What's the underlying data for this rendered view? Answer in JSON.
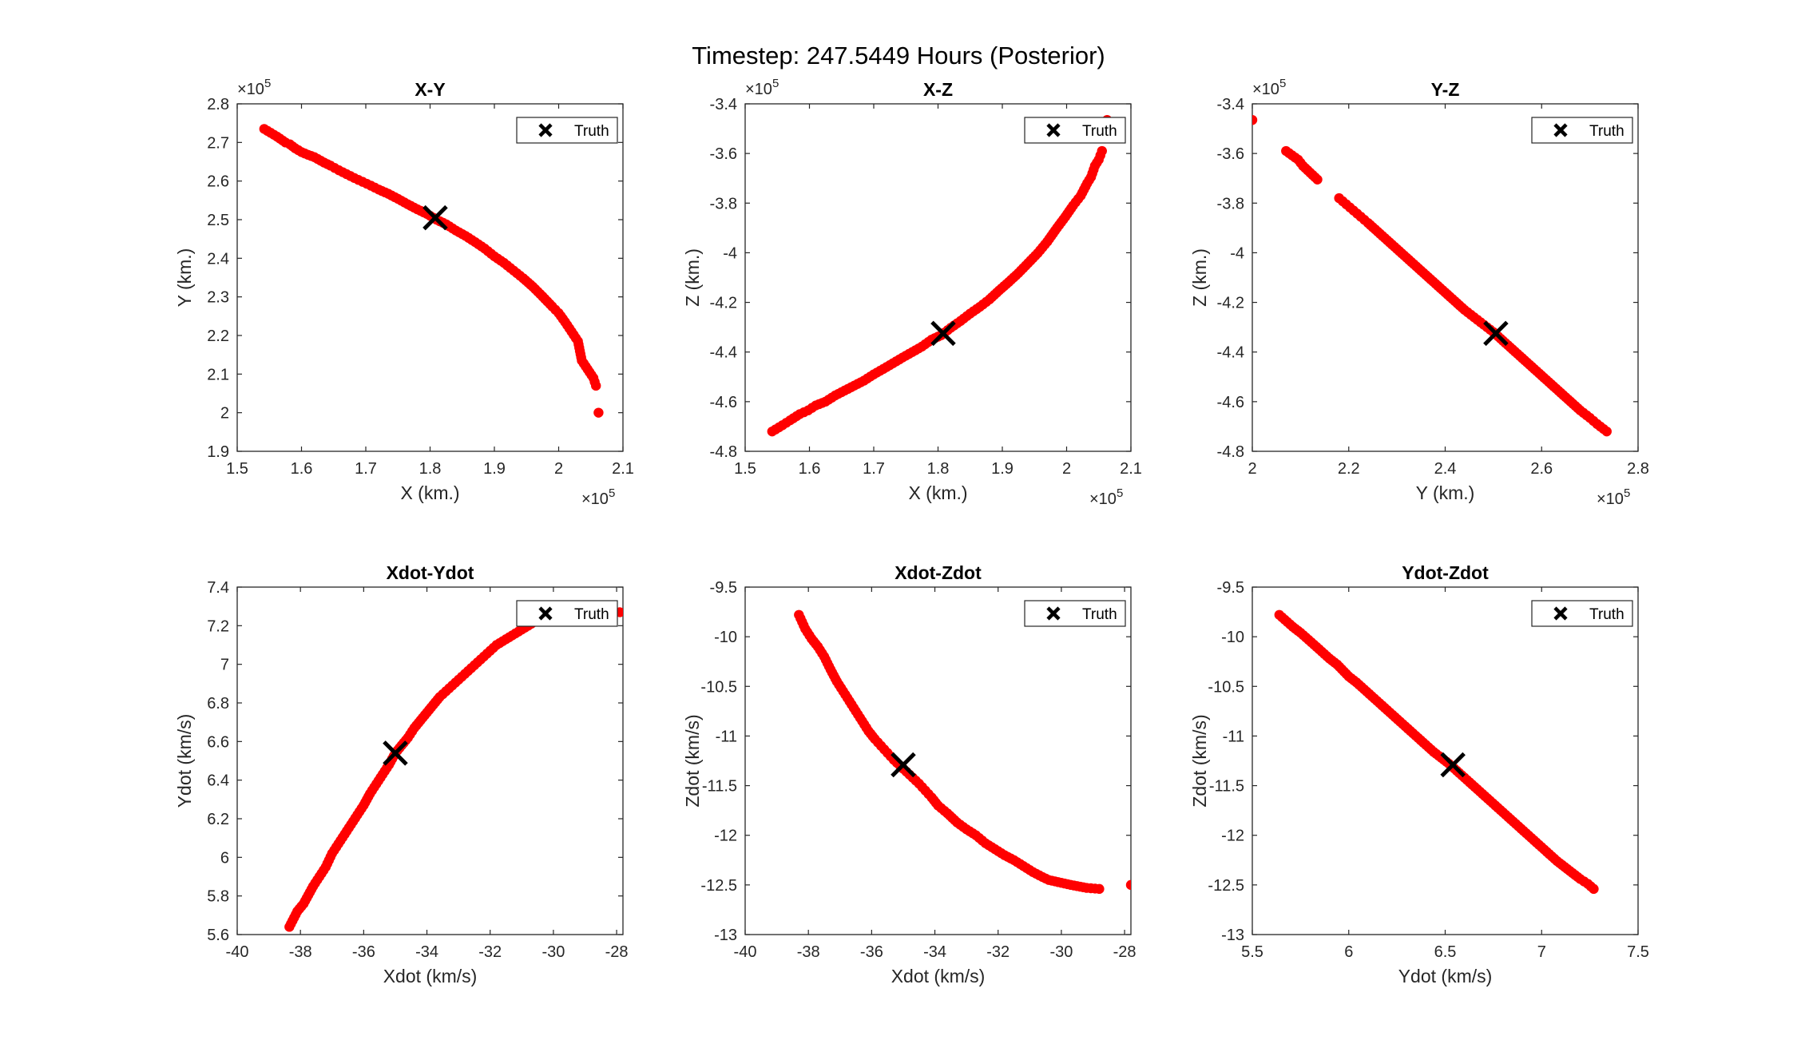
{
  "figure": {
    "title": "Timestep: 247.5449 Hours (Posterior)"
  },
  "colors": {
    "points": "#ff0000",
    "truth": "#000000",
    "axes": "#262626"
  },
  "chart_data": [
    {
      "type": "scatter",
      "title": "X-Y",
      "xlabel": "X (km.)",
      "ylabel": "Y (km.)",
      "xlim": [
        150000,
        210000
      ],
      "ylim": [
        190000,
        280000
      ],
      "xticks": [
        "1.5",
        "1.6",
        "1.7",
        "1.8",
        "1.9",
        "2",
        "2.1"
      ],
      "yticks": [
        "1.9",
        "2",
        "2.1",
        "2.2",
        "2.3",
        "2.4",
        "2.5",
        "2.6",
        "2.7",
        "2.8"
      ],
      "x_exponent": "5",
      "y_exponent": "5",
      "legend": {
        "label": "Truth",
        "position": "top-right"
      },
      "truth": [
        180800,
        250500
      ],
      "samples": [
        [
          154200,
          273500
        ],
        [
          156200,
          271500
        ],
        [
          157500,
          270000
        ],
        [
          158200,
          269500
        ],
        [
          159000,
          268500
        ],
        [
          160000,
          267500
        ],
        [
          161000,
          266800
        ],
        [
          162000,
          266200
        ],
        [
          163500,
          264800
        ],
        [
          164500,
          264000
        ],
        [
          165800,
          262800
        ],
        [
          167000,
          261800
        ],
        [
          168200,
          260800
        ],
        [
          169500,
          259800
        ],
        [
          170800,
          258800
        ],
        [
          172000,
          257800
        ],
        [
          173500,
          256700
        ],
        [
          175000,
          255400
        ],
        [
          176500,
          254000
        ],
        [
          178000,
          252700
        ],
        [
          179500,
          251500
        ],
        [
          181000,
          250000
        ],
        [
          182500,
          248800
        ],
        [
          184000,
          247200
        ],
        [
          185500,
          245800
        ],
        [
          187000,
          244200
        ],
        [
          188500,
          242500
        ],
        [
          190000,
          240500
        ],
        [
          191500,
          238800
        ],
        [
          193000,
          236800
        ],
        [
          194500,
          234800
        ],
        [
          196000,
          232600
        ],
        [
          197500,
          230100
        ],
        [
          199000,
          227500
        ],
        [
          200000,
          225800
        ],
        [
          201000,
          223500
        ],
        [
          202000,
          221000
        ],
        [
          203000,
          218500
        ],
        [
          203600,
          213500
        ],
        [
          204800,
          210500
        ],
        [
          205400,
          209000
        ],
        [
          205800,
          207000
        ],
        [
          206200,
          200000
        ]
      ]
    },
    {
      "type": "scatter",
      "title": "X-Z",
      "xlabel": "X (km.)",
      "ylabel": "Z (km.)",
      "xlim": [
        150000,
        210000
      ],
      "ylim": [
        -480000,
        -340000
      ],
      "xticks": [
        "1.5",
        "1.6",
        "1.7",
        "1.8",
        "1.9",
        "2",
        "2.1"
      ],
      "yticks": [
        "-4.8",
        "-4.6",
        "-4.4",
        "-4.2",
        "-4",
        "-3.8",
        "-3.6",
        "-3.4"
      ],
      "x_exponent": "5",
      "y_exponent": "5",
      "legend": {
        "label": "Truth",
        "position": "top-right"
      },
      "truth": [
        180800,
        -432500
      ],
      "samples": [
        [
          154200,
          -472000
        ],
        [
          155800,
          -469500
        ],
        [
          157000,
          -467500
        ],
        [
          158500,
          -465000
        ],
        [
          159800,
          -463500
        ],
        [
          161000,
          -461500
        ],
        [
          162500,
          -460000
        ],
        [
          164000,
          -457500
        ],
        [
          165500,
          -455500
        ],
        [
          167000,
          -453500
        ],
        [
          168500,
          -451500
        ],
        [
          170000,
          -449000
        ],
        [
          171500,
          -446800
        ],
        [
          173000,
          -444500
        ],
        [
          174500,
          -442200
        ],
        [
          176000,
          -440000
        ],
        [
          177500,
          -437800
        ],
        [
          179000,
          -435000
        ],
        [
          180500,
          -433200
        ],
        [
          182000,
          -430200
        ],
        [
          183500,
          -427500
        ],
        [
          185000,
          -424500
        ],
        [
          186500,
          -421800
        ],
        [
          188000,
          -418800
        ],
        [
          189500,
          -415200
        ],
        [
          191000,
          -411800
        ],
        [
          192500,
          -408200
        ],
        [
          194000,
          -404200
        ],
        [
          195500,
          -400200
        ],
        [
          197000,
          -395500
        ],
        [
          198500,
          -390000
        ],
        [
          199800,
          -385500
        ],
        [
          201000,
          -381000
        ],
        [
          202200,
          -377000
        ],
        [
          203200,
          -372000
        ],
        [
          203800,
          -369500
        ],
        [
          204400,
          -365000
        ],
        [
          205000,
          -362500
        ],
        [
          205500,
          -359000
        ],
        [
          206300,
          -346500
        ]
      ]
    },
    {
      "type": "scatter",
      "title": "Y-Z",
      "xlabel": "Y (km.)",
      "ylabel": "Z (km.)",
      "xlim": [
        200000,
        280000
      ],
      "ylim": [
        -480000,
        -340000
      ],
      "xticks": [
        "2",
        "2.2",
        "2.4",
        "2.6",
        "2.8"
      ],
      "yticks": [
        "-4.8",
        "-4.6",
        "-4.4",
        "-4.2",
        "-4",
        "-3.8",
        "-3.6",
        "-3.4"
      ],
      "x_exponent": "5",
      "y_exponent": "5",
      "legend": {
        "label": "Truth",
        "position": "top-right"
      },
      "truth": [
        250500,
        -432500
      ],
      "samples": [
        [
          200000,
          -346500
        ],
        [
          207000,
          -359000
        ],
        [
          209500,
          -362500
        ],
        [
          210500,
          -365000
        ],
        [
          213500,
          -370500
        ],
        [
          218000,
          -378000
        ],
        [
          219500,
          -380500
        ],
        [
          221000,
          -383000
        ],
        [
          222500,
          -385500
        ],
        [
          224000,
          -388000
        ],
        [
          226000,
          -391500
        ],
        [
          228000,
          -395000
        ],
        [
          230000,
          -398500
        ],
        [
          232000,
          -402000
        ],
        [
          234000,
          -405500
        ],
        [
          236000,
          -409000
        ],
        [
          238000,
          -412500
        ],
        [
          240000,
          -416000
        ],
        [
          242000,
          -419500
        ],
        [
          244000,
          -423000
        ],
        [
          246000,
          -426000
        ],
        [
          248000,
          -429000
        ],
        [
          250000,
          -432000
        ],
        [
          252000,
          -435500
        ],
        [
          254000,
          -439000
        ],
        [
          256000,
          -442500
        ],
        [
          258000,
          -446000
        ],
        [
          260000,
          -449500
        ],
        [
          262000,
          -453000
        ],
        [
          264000,
          -456500
        ],
        [
          266000,
          -460000
        ],
        [
          268000,
          -463500
        ],
        [
          270000,
          -466500
        ],
        [
          271500,
          -469000
        ],
        [
          273500,
          -472000
        ]
      ]
    },
    {
      "type": "scatter",
      "title": "Xdot-Ydot",
      "xlabel": "Xdot (km/s)",
      "ylabel": "Ydot (km/s)",
      "xlim": [
        -40,
        -27.8
      ],
      "ylim": [
        5.6,
        7.4
      ],
      "xticks": [
        "-40",
        "-38",
        "-36",
        "-34",
        "-32",
        "-30",
        "-28"
      ],
      "yticks": [
        "5.6",
        "5.8",
        "6",
        "6.2",
        "6.4",
        "6.6",
        "6.8",
        "7",
        "7.2",
        "7.4"
      ],
      "x_exponent": "",
      "y_exponent": "",
      "legend": {
        "label": "Truth",
        "position": "top-right"
      },
      "truth": [
        -35.0,
        6.54
      ],
      "samples": [
        [
          -38.35,
          5.64
        ],
        [
          -38.1,
          5.72
        ],
        [
          -37.9,
          5.76
        ],
        [
          -37.7,
          5.82
        ],
        [
          -37.6,
          5.85
        ],
        [
          -37.4,
          5.9
        ],
        [
          -37.2,
          5.95
        ],
        [
          -37.0,
          6.02
        ],
        [
          -36.8,
          6.07
        ],
        [
          -36.6,
          6.12
        ],
        [
          -36.4,
          6.17
        ],
        [
          -36.2,
          6.22
        ],
        [
          -36.0,
          6.27
        ],
        [
          -35.8,
          6.33
        ],
        [
          -35.6,
          6.38
        ],
        [
          -35.4,
          6.43
        ],
        [
          -35.2,
          6.48
        ],
        [
          -35.0,
          6.54
        ],
        [
          -34.8,
          6.58
        ],
        [
          -34.6,
          6.62
        ],
        [
          -34.4,
          6.67
        ],
        [
          -34.2,
          6.71
        ],
        [
          -34.0,
          6.75
        ],
        [
          -33.8,
          6.79
        ],
        [
          -33.6,
          6.83
        ],
        [
          -33.4,
          6.86
        ],
        [
          -33.2,
          6.89
        ],
        [
          -33.0,
          6.92
        ],
        [
          -32.8,
          6.95
        ],
        [
          -32.6,
          6.98
        ],
        [
          -32.4,
          7.01
        ],
        [
          -32.2,
          7.04
        ],
        [
          -32.0,
          7.07
        ],
        [
          -31.8,
          7.1
        ],
        [
          -31.6,
          7.12
        ],
        [
          -31.4,
          7.14
        ],
        [
          -31.2,
          7.16
        ],
        [
          -31.0,
          7.18
        ],
        [
          -30.8,
          7.2
        ],
        [
          -30.6,
          7.22
        ],
        [
          -30.4,
          7.24
        ],
        [
          -30.2,
          7.25
        ],
        [
          -29.9,
          7.25
        ],
        [
          -27.9,
          7.27
        ]
      ]
    },
    {
      "type": "scatter",
      "title": "Xdot-Zdot",
      "xlabel": "Xdot (km/s)",
      "ylabel": "Zdot (km/s)",
      "xlim": [
        -40,
        -27.8
      ],
      "ylim": [
        -13,
        -9.5
      ],
      "xticks": [
        "-40",
        "-38",
        "-36",
        "-34",
        "-32",
        "-30",
        "-28"
      ],
      "yticks": [
        "-13",
        "-12.5",
        "-12",
        "-11.5",
        "-11",
        "-10.5",
        "-10",
        "-9.5"
      ],
      "x_exponent": "",
      "y_exponent": "",
      "legend": {
        "label": "Truth",
        "position": "top-right"
      },
      "truth": [
        -35.0,
        -11.29
      ],
      "samples": [
        [
          -38.3,
          -9.78
        ],
        [
          -38.1,
          -9.92
        ],
        [
          -37.9,
          -10.02
        ],
        [
          -37.7,
          -10.1
        ],
        [
          -37.5,
          -10.2
        ],
        [
          -37.3,
          -10.33
        ],
        [
          -37.1,
          -10.45
        ],
        [
          -36.9,
          -10.55
        ],
        [
          -36.7,
          -10.65
        ],
        [
          -36.5,
          -10.75
        ],
        [
          -36.3,
          -10.85
        ],
        [
          -36.1,
          -10.95
        ],
        [
          -35.9,
          -11.03
        ],
        [
          -35.7,
          -11.1
        ],
        [
          -35.5,
          -11.17
        ],
        [
          -35.3,
          -11.24
        ],
        [
          -35.1,
          -11.3
        ],
        [
          -34.9,
          -11.36
        ],
        [
          -34.7,
          -11.42
        ],
        [
          -34.5,
          -11.48
        ],
        [
          -34.3,
          -11.55
        ],
        [
          -34.1,
          -11.62
        ],
        [
          -33.9,
          -11.7
        ],
        [
          -33.6,
          -11.78
        ],
        [
          -33.3,
          -11.87
        ],
        [
          -33.0,
          -11.94
        ],
        [
          -32.7,
          -12.0
        ],
        [
          -32.4,
          -12.08
        ],
        [
          -32.1,
          -12.14
        ],
        [
          -31.8,
          -12.2
        ],
        [
          -31.5,
          -12.25
        ],
        [
          -31.2,
          -12.31
        ],
        [
          -30.9,
          -12.37
        ],
        [
          -30.6,
          -12.42
        ],
        [
          -30.4,
          -12.45
        ],
        [
          -29.7,
          -12.5
        ],
        [
          -29.2,
          -12.53
        ],
        [
          -28.8,
          -12.54
        ],
        [
          -27.8,
          -12.5
        ]
      ]
    },
    {
      "type": "scatter",
      "title": "Ydot-Zdot",
      "xlabel": "Ydot (km/s)",
      "ylabel": "Zdot (km/s)",
      "xlim": [
        5.5,
        7.5
      ],
      "ylim": [
        -13,
        -9.5
      ],
      "xticks": [
        "5.5",
        "6",
        "6.5",
        "7",
        "7.5"
      ],
      "yticks": [
        "-13",
        "-12.5",
        "-12",
        "-11.5",
        "-11",
        "-10.5",
        "-10",
        "-9.5"
      ],
      "x_exponent": "",
      "y_exponent": "",
      "legend": {
        "label": "Truth",
        "position": "top-right"
      },
      "truth": [
        6.54,
        -11.29
      ],
      "samples": [
        [
          5.64,
          -9.78
        ],
        [
          5.71,
          -9.9
        ],
        [
          5.75,
          -9.96
        ],
        [
          5.82,
          -10.08
        ],
        [
          5.86,
          -10.15
        ],
        [
          5.9,
          -10.22
        ],
        [
          5.94,
          -10.28
        ],
        [
          6.0,
          -10.4
        ],
        [
          6.04,
          -10.46
        ],
        [
          6.08,
          -10.53
        ],
        [
          6.12,
          -10.6
        ],
        [
          6.16,
          -10.67
        ],
        [
          6.2,
          -10.74
        ],
        [
          6.24,
          -10.81
        ],
        [
          6.28,
          -10.88
        ],
        [
          6.32,
          -10.95
        ],
        [
          6.36,
          -11.02
        ],
        [
          6.4,
          -11.09
        ],
        [
          6.44,
          -11.16
        ],
        [
          6.48,
          -11.22
        ],
        [
          6.52,
          -11.28
        ],
        [
          6.56,
          -11.35
        ],
        [
          6.6,
          -11.42
        ],
        [
          6.64,
          -11.49
        ],
        [
          6.68,
          -11.56
        ],
        [
          6.72,
          -11.63
        ],
        [
          6.76,
          -11.7
        ],
        [
          6.8,
          -11.77
        ],
        [
          6.84,
          -11.84
        ],
        [
          6.88,
          -11.91
        ],
        [
          6.92,
          -11.98
        ],
        [
          6.96,
          -12.05
        ],
        [
          7.0,
          -12.12
        ],
        [
          7.04,
          -12.19
        ],
        [
          7.08,
          -12.26
        ],
        [
          7.12,
          -12.32
        ],
        [
          7.16,
          -12.38
        ],
        [
          7.2,
          -12.44
        ],
        [
          7.24,
          -12.49
        ],
        [
          7.27,
          -12.54
        ]
      ]
    }
  ]
}
